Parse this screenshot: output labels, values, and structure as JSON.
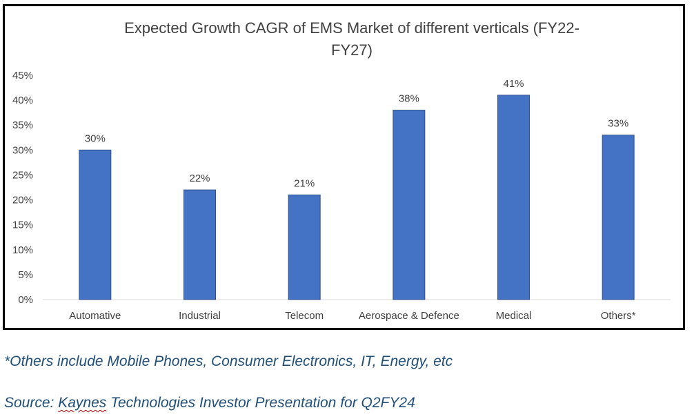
{
  "chart_data": {
    "type": "bar",
    "title_lines": [
      "Expected Growth CAGR of EMS Market of different verticals (FY22-",
      "FY27)"
    ],
    "categories": [
      "Automative",
      "Industrial",
      "Telecom",
      "Aerospace & Defence",
      "Medical",
      "Others*"
    ],
    "values": [
      30,
      22,
      21,
      38,
      41,
      33
    ],
    "data_labels": [
      "30%",
      "22%",
      "21%",
      "38%",
      "41%",
      "33%"
    ],
    "y_ticks": [
      "0%",
      "5%",
      "10%",
      "15%",
      "20%",
      "25%",
      "30%",
      "35%",
      "40%",
      "45%"
    ],
    "ylim": [
      0,
      45
    ],
    "xlabel": "",
    "ylabel": "",
    "grid": false,
    "bar_color": "#4472c4"
  },
  "notes": {
    "others_note": "*Others include Mobile Phones, Consumer Electronics, IT, Energy, etc",
    "source_prefix": "Source: ",
    "source_company": "Kaynes",
    "source_rest": " Technologies Investor Presentation for Q2FY24"
  }
}
